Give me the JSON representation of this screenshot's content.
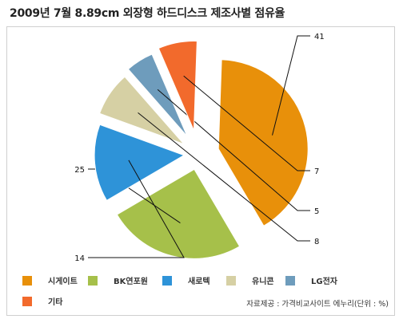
{
  "title": "2009년 7월 8.89cm 외장형 하드디스크 제조사별 점유율",
  "source_note": "자료제공 : 가격비교사이트 에누리(단위 : %)",
  "chart_data": {
    "type": "pie",
    "title": "2009년 7월 8.89cm 외장형 하드디스크 제조사별 점유율",
    "unit": "%",
    "categories": [
      "시게이트",
      "BK연포원",
      "새로텍",
      "유니콘",
      "LG전자",
      "기타"
    ],
    "values": [
      41,
      25,
      14,
      8,
      5,
      7
    ],
    "colors": [
      "#E8900A",
      "#A6C04A",
      "#2E93D8",
      "#D6D0A4",
      "#6E9CBC",
      "#F26A2C"
    ],
    "exploded": true,
    "legend_position": "bottom"
  }
}
